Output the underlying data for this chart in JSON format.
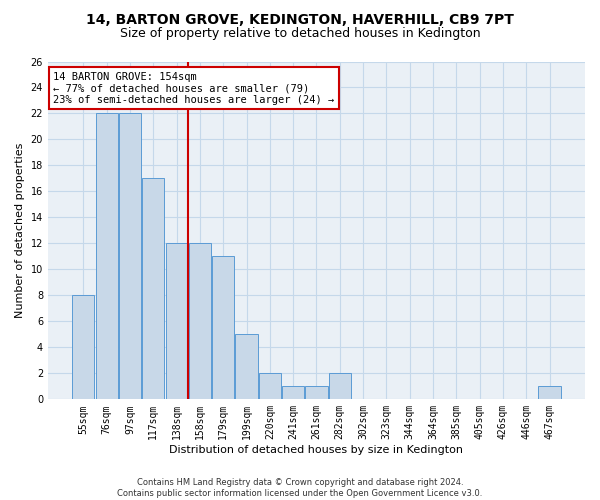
{
  "title": "14, BARTON GROVE, KEDINGTON, HAVERHILL, CB9 7PT",
  "subtitle": "Size of property relative to detached houses in Kedington",
  "xlabel": "Distribution of detached houses by size in Kedington",
  "ylabel": "Number of detached properties",
  "categories": [
    "55sqm",
    "76sqm",
    "97sqm",
    "117sqm",
    "138sqm",
    "158sqm",
    "179sqm",
    "199sqm",
    "220sqm",
    "241sqm",
    "261sqm",
    "282sqm",
    "302sqm",
    "323sqm",
    "344sqm",
    "364sqm",
    "385sqm",
    "405sqm",
    "426sqm",
    "446sqm",
    "467sqm"
  ],
  "values": [
    8,
    22,
    22,
    17,
    12,
    12,
    11,
    5,
    2,
    1,
    1,
    2,
    0,
    0,
    0,
    0,
    0,
    0,
    0,
    0,
    1
  ],
  "bar_color": "#c8d8e8",
  "bar_edgecolor": "#5b9bd5",
  "annotation_text": "14 BARTON GROVE: 154sqm\n← 77% of detached houses are smaller (79)\n23% of semi-detached houses are larger (24) →",
  "annotation_box_color": "#ffffff",
  "annotation_box_edgecolor": "#cc0000",
  "vline_color": "#cc0000",
  "vline_x_index": 4.5,
  "ylim": [
    0,
    26
  ],
  "yticks": [
    0,
    2,
    4,
    6,
    8,
    10,
    12,
    14,
    16,
    18,
    20,
    22,
    24,
    26
  ],
  "grid_color": "#c5d8ea",
  "background_color": "#eaf0f6",
  "fig_background_color": "#ffffff",
  "footer": "Contains HM Land Registry data © Crown copyright and database right 2024.\nContains public sector information licensed under the Open Government Licence v3.0.",
  "title_fontsize": 10,
  "subtitle_fontsize": 9,
  "ylabel_fontsize": 8,
  "xlabel_fontsize": 8,
  "tick_fontsize": 7,
  "annotation_fontsize": 7.5,
  "footer_fontsize": 6
}
